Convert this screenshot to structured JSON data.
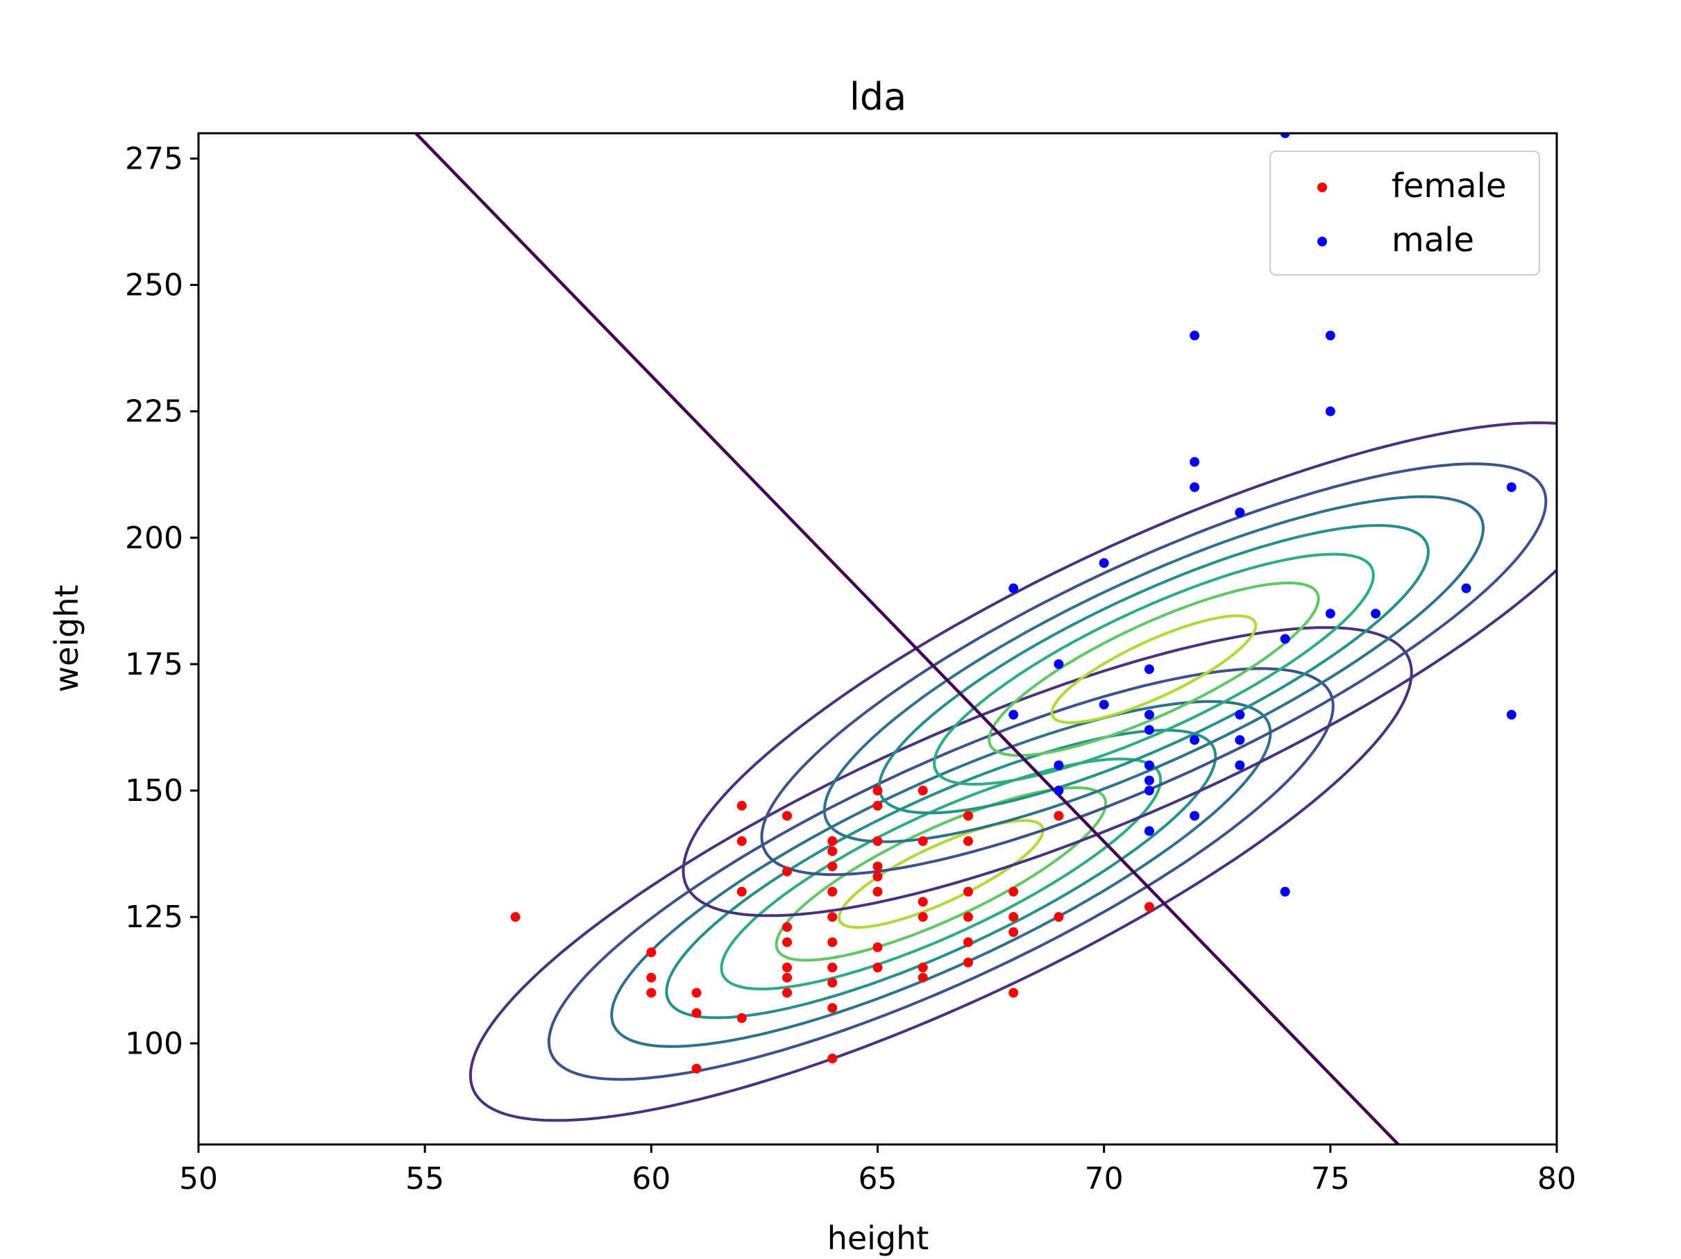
{
  "chart_data": {
    "type": "scatter",
    "title": "lda",
    "xlabel": "height",
    "ylabel": "weight",
    "xlim": [
      50,
      80
    ],
    "ylim": [
      80,
      280
    ],
    "xticks": [
      50,
      55,
      60,
      65,
      70,
      75,
      80
    ],
    "yticks": [
      100,
      125,
      150,
      175,
      200,
      225,
      250,
      275
    ],
    "grid": false,
    "legend_position": "top-right",
    "series": [
      {
        "name": "female",
        "color": "#ff0000",
        "points": [
          [
            57,
            125
          ],
          [
            60,
            118
          ],
          [
            60,
            113
          ],
          [
            60,
            110
          ],
          [
            61,
            110
          ],
          [
            61,
            106
          ],
          [
            61,
            95
          ],
          [
            62,
            147
          ],
          [
            62,
            140
          ],
          [
            62,
            130
          ],
          [
            62,
            105
          ],
          [
            63,
            145
          ],
          [
            63,
            134
          ],
          [
            63,
            123
          ],
          [
            63,
            120
          ],
          [
            63,
            115
          ],
          [
            63,
            113
          ],
          [
            63,
            110
          ],
          [
            64,
            140
          ],
          [
            64,
            138
          ],
          [
            64,
            135
          ],
          [
            64,
            130
          ],
          [
            64,
            125
          ],
          [
            64,
            120
          ],
          [
            64,
            115
          ],
          [
            64,
            112
          ],
          [
            64,
            107
          ],
          [
            64,
            97
          ],
          [
            65,
            150
          ],
          [
            65,
            147
          ],
          [
            65,
            140
          ],
          [
            65,
            135
          ],
          [
            65,
            133
          ],
          [
            65,
            130
          ],
          [
            65,
            119
          ],
          [
            65,
            115
          ],
          [
            66,
            150
          ],
          [
            66,
            140
          ],
          [
            66,
            128
          ],
          [
            66,
            125
          ],
          [
            66,
            115
          ],
          [
            66,
            113
          ],
          [
            67,
            145
          ],
          [
            67,
            140
          ],
          [
            67,
            130
          ],
          [
            67,
            125
          ],
          [
            67,
            120
          ],
          [
            67,
            116
          ],
          [
            68,
            130
          ],
          [
            68,
            125
          ],
          [
            68,
            122
          ],
          [
            68,
            110
          ],
          [
            69,
            145
          ],
          [
            69,
            125
          ],
          [
            71,
            127
          ]
        ]
      },
      {
        "name": "male",
        "color": "#0000ff",
        "points": [
          [
            68,
            190
          ],
          [
            68,
            165
          ],
          [
            69,
            175
          ],
          [
            69,
            155
          ],
          [
            69,
            150
          ],
          [
            70,
            195
          ],
          [
            70,
            167
          ],
          [
            71,
            174
          ],
          [
            71,
            165
          ],
          [
            71,
            162
          ],
          [
            71,
            155
          ],
          [
            71,
            152
          ],
          [
            71,
            150
          ],
          [
            71,
            142
          ],
          [
            72,
            240
          ],
          [
            72,
            215
          ],
          [
            72,
            210
          ],
          [
            72,
            160
          ],
          [
            72,
            145
          ],
          [
            73,
            205
          ],
          [
            73,
            165
          ],
          [
            73,
            160
          ],
          [
            73,
            155
          ],
          [
            74,
            280
          ],
          [
            74,
            180
          ],
          [
            74,
            130
          ],
          [
            75,
            240
          ],
          [
            75,
            225
          ],
          [
            75,
            185
          ],
          [
            76,
            185
          ],
          [
            78,
            190
          ],
          [
            79,
            210
          ],
          [
            79,
            165
          ]
        ]
      }
    ],
    "decision_boundary": {
      "from": [
        54.8,
        280
      ],
      "to": [
        76.5,
        80
      ]
    },
    "gaussians": [
      {
        "class": "female",
        "mean": [
          66.4,
          133.5
        ],
        "cov": [
          [
            12.0,
            46.0
          ],
          [
            46.0,
            264.0
          ]
        ]
      },
      {
        "class": "male",
        "mean": [
          71.1,
          174.0
        ],
        "cov": [
          [
            12.0,
            46.0
          ],
          [
            46.0,
            264.0
          ]
        ]
      }
    ],
    "contour_colors": [
      "#46327e",
      "#3b528b",
      "#2c728e",
      "#21918c",
      "#28ae80",
      "#5ec962",
      "#addc30"
    ]
  }
}
